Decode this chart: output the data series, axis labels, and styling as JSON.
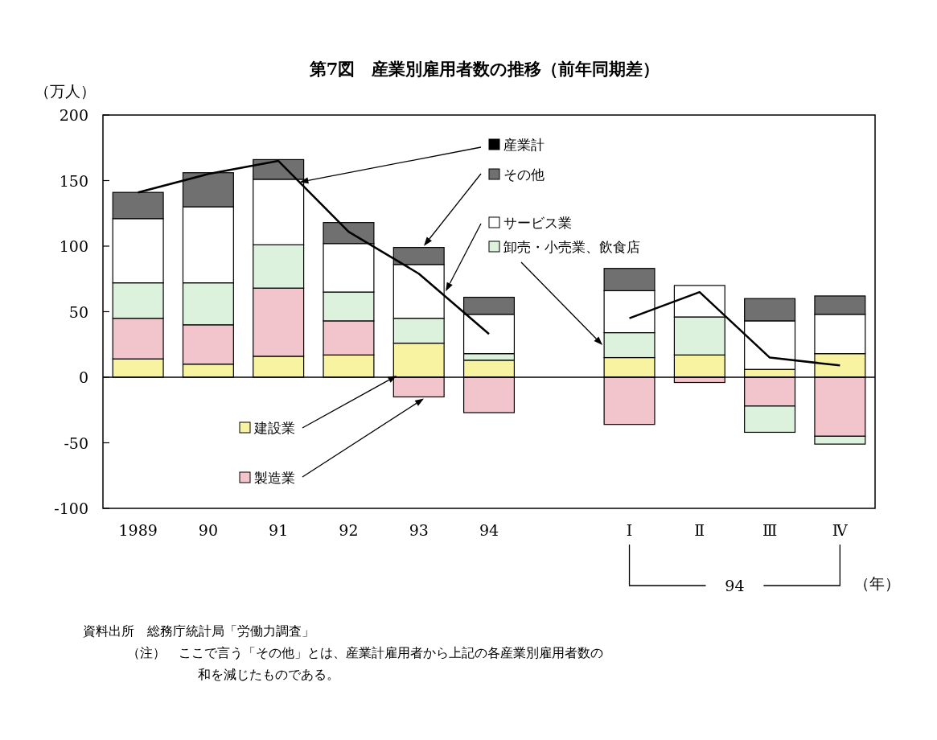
{
  "chart_data": {
    "type": "bar",
    "stacked": true,
    "title": "第7図　産業別雇用者数の推移（前年同期差）",
    "ylabel": "（万人）",
    "xlabel": "（年）",
    "categories": [
      "1989",
      "90",
      "91",
      "92",
      "93",
      "94",
      null,
      "Ⅰ",
      "Ⅱ",
      "Ⅲ",
      "Ⅳ"
    ],
    "series": [
      {
        "name": "建設業",
        "color": "#f7f3a0",
        "values": [
          14,
          10,
          16,
          17,
          26,
          13,
          null,
          15,
          17,
          6,
          18
        ]
      },
      {
        "name": "製造業",
        "color": "#f2c4cc",
        "values": [
          31,
          30,
          52,
          26,
          -15,
          -27,
          null,
          -36,
          -4,
          -22,
          -45
        ]
      },
      {
        "name": "卸売・小売業、飲食店",
        "color": "#dcf2dc",
        "values": [
          27,
          32,
          33,
          22,
          19,
          5,
          null,
          19,
          29,
          -20,
          -6
        ]
      },
      {
        "name": "サービス業",
        "color": "#ffffff",
        "values": [
          49,
          58,
          50,
          37,
          41,
          30,
          null,
          32,
          24,
          37,
          30
        ]
      },
      {
        "name": "その他",
        "color": "#707070",
        "values": [
          20,
          26,
          15,
          16,
          13,
          13,
          null,
          17,
          null,
          17,
          14
        ]
      },
      {
        "name": "産業計",
        "type": "line",
        "color": "#000000",
        "values": [
          141,
          155,
          165,
          111,
          79,
          33,
          null,
          45,
          65,
          15,
          9
        ]
      }
    ],
    "ylim": [
      -100,
      200
    ],
    "yticks": [
      -100,
      -50,
      0,
      50,
      100,
      150,
      200
    ],
    "ref_lines": [
      {
        "axis": "y",
        "value": 0
      }
    ],
    "legend": "top left",
    "annotations": [
      "94",
      "資料出所　総務庁統計局「労働力調査」",
      "（注）　ここで言う「その他」とは、産業計雇用者から上記の各産業別雇用者数の",
      "和を減じたものである。"
    ]
  }
}
